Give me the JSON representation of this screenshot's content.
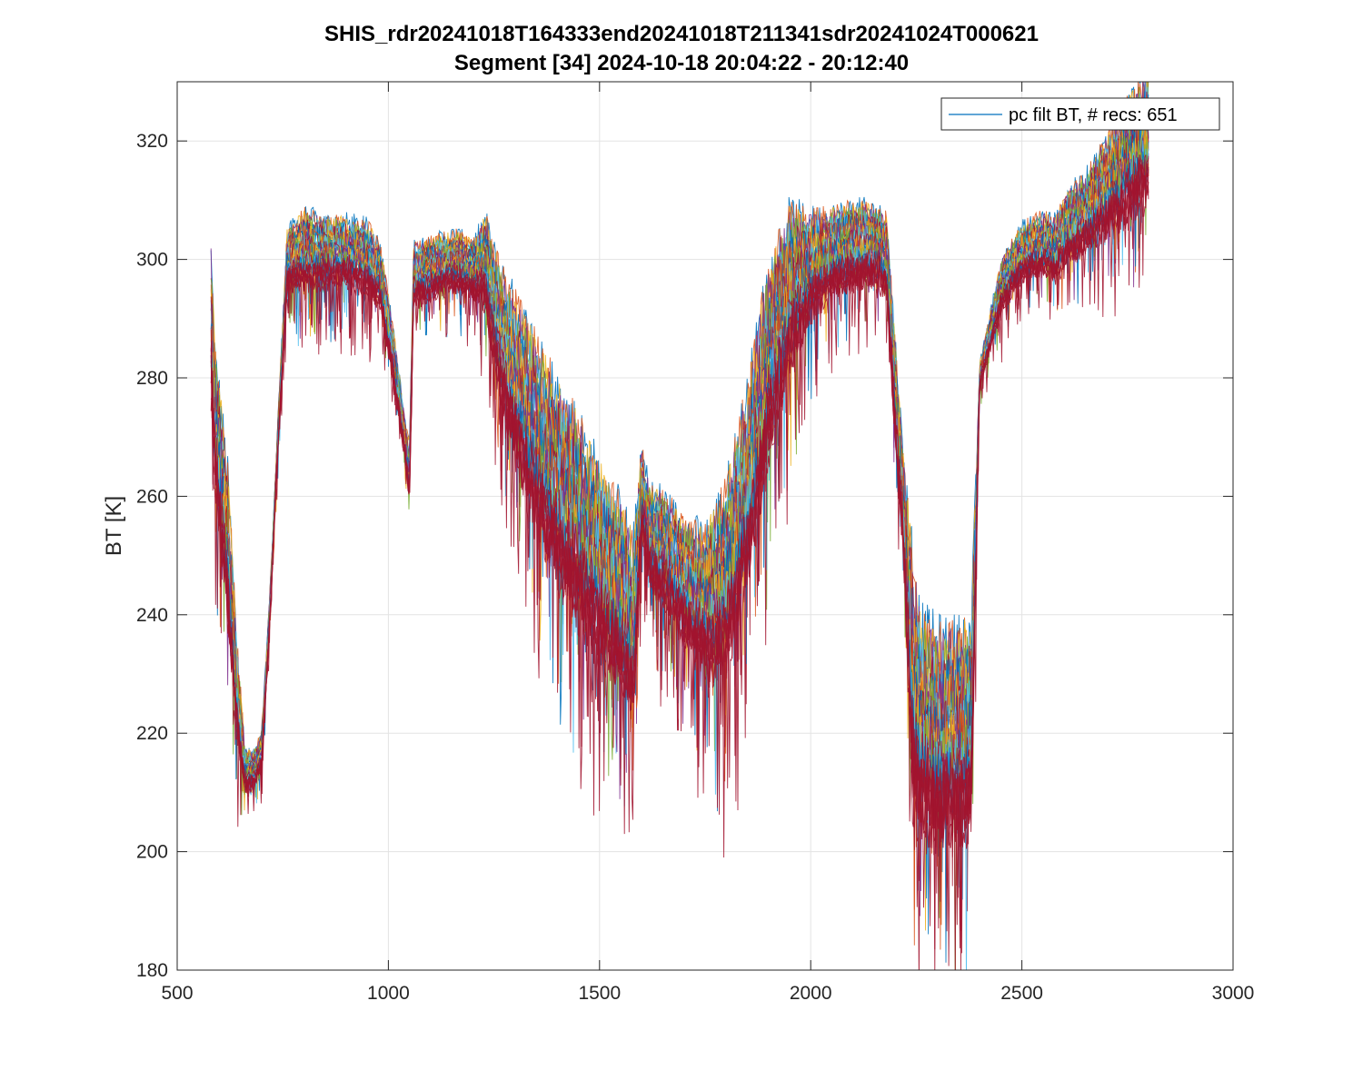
{
  "title_line1": "SHIS_rdr20241018T164333end20241018T211341sdr20241024T000621",
  "title_line2": "Segment [34] 2024-10-18 20:04:22 - 20:12:40",
  "chart_data": {
    "type": "line",
    "title": "SHIS_rdr20241018T164333end20241018T211341sdr20241024T000621\nSegment [34] 2024-10-18 20:04:22 - 20:12:40",
    "xlabel": "",
    "ylabel": "BT [K]",
    "xlim": [
      500,
      3000
    ],
    "ylim": [
      180,
      330
    ],
    "xticks": [
      500,
      1000,
      1500,
      2000,
      2500,
      3000
    ],
    "yticks": [
      180,
      200,
      220,
      240,
      260,
      280,
      300,
      320
    ],
    "grid": true,
    "legend": {
      "entries": [
        "pc filt BT, # recs:  651"
      ],
      "placement": "top-right"
    },
    "n_records": 651,
    "colors": [
      "#0072BD",
      "#D95319",
      "#EDB120",
      "#7E2F8E",
      "#77AC30",
      "#4DBEEE",
      "#A2142F"
    ],
    "envelope": {
      "x": [
        580,
        590,
        600,
        620,
        640,
        660,
        680,
        700,
        720,
        740,
        760,
        800,
        850,
        900,
        950,
        980,
        1000,
        1020,
        1040,
        1050,
        1060,
        1080,
        1120,
        1160,
        1200,
        1230,
        1250,
        1280,
        1320,
        1360,
        1400,
        1450,
        1500,
        1550,
        1580,
        1600,
        1620,
        1650,
        1700,
        1750,
        1800,
        1850,
        1900,
        1950,
        2000,
        2050,
        2100,
        2150,
        2180,
        2200,
        2220,
        2240,
        2260,
        2300,
        2350,
        2380,
        2400,
        2450,
        2500,
        2550,
        2580,
        2600,
        2650,
        2700,
        2750,
        2800
      ],
      "upper": [
        300,
        282,
        276,
        262,
        236,
        217,
        216,
        220,
        244,
        275,
        304,
        307,
        306,
        306,
        305,
        302,
        293,
        283,
        272,
        268,
        302,
        302,
        303,
        304,
        302,
        306,
        300,
        294,
        288,
        282,
        276,
        270,
        262,
        256,
        250,
        267,
        260,
        259,
        254,
        252,
        259,
        275,
        296,
        306,
        306,
        307,
        308,
        308,
        306,
        285,
        265,
        248,
        236,
        234,
        234,
        236,
        282,
        299,
        305,
        307,
        306,
        310,
        313,
        319,
        325,
        330
      ],
      "lower": [
        260,
        248,
        238,
        224,
        209,
        206,
        207,
        210,
        236,
        266,
        289,
        288,
        289,
        289,
        287,
        285,
        278,
        270,
        262,
        253,
        286,
        287,
        288,
        289,
        288,
        283,
        270,
        256,
        244,
        234,
        226,
        220,
        214,
        210,
        206,
        245,
        236,
        230,
        224,
        216,
        212,
        226,
        248,
        266,
        280,
        286,
        287,
        288,
        286,
        258,
        240,
        182,
        182,
        182,
        182,
        184,
        276,
        286,
        291,
        292,
        290,
        292,
        294,
        295,
        296,
        297
      ]
    }
  }
}
